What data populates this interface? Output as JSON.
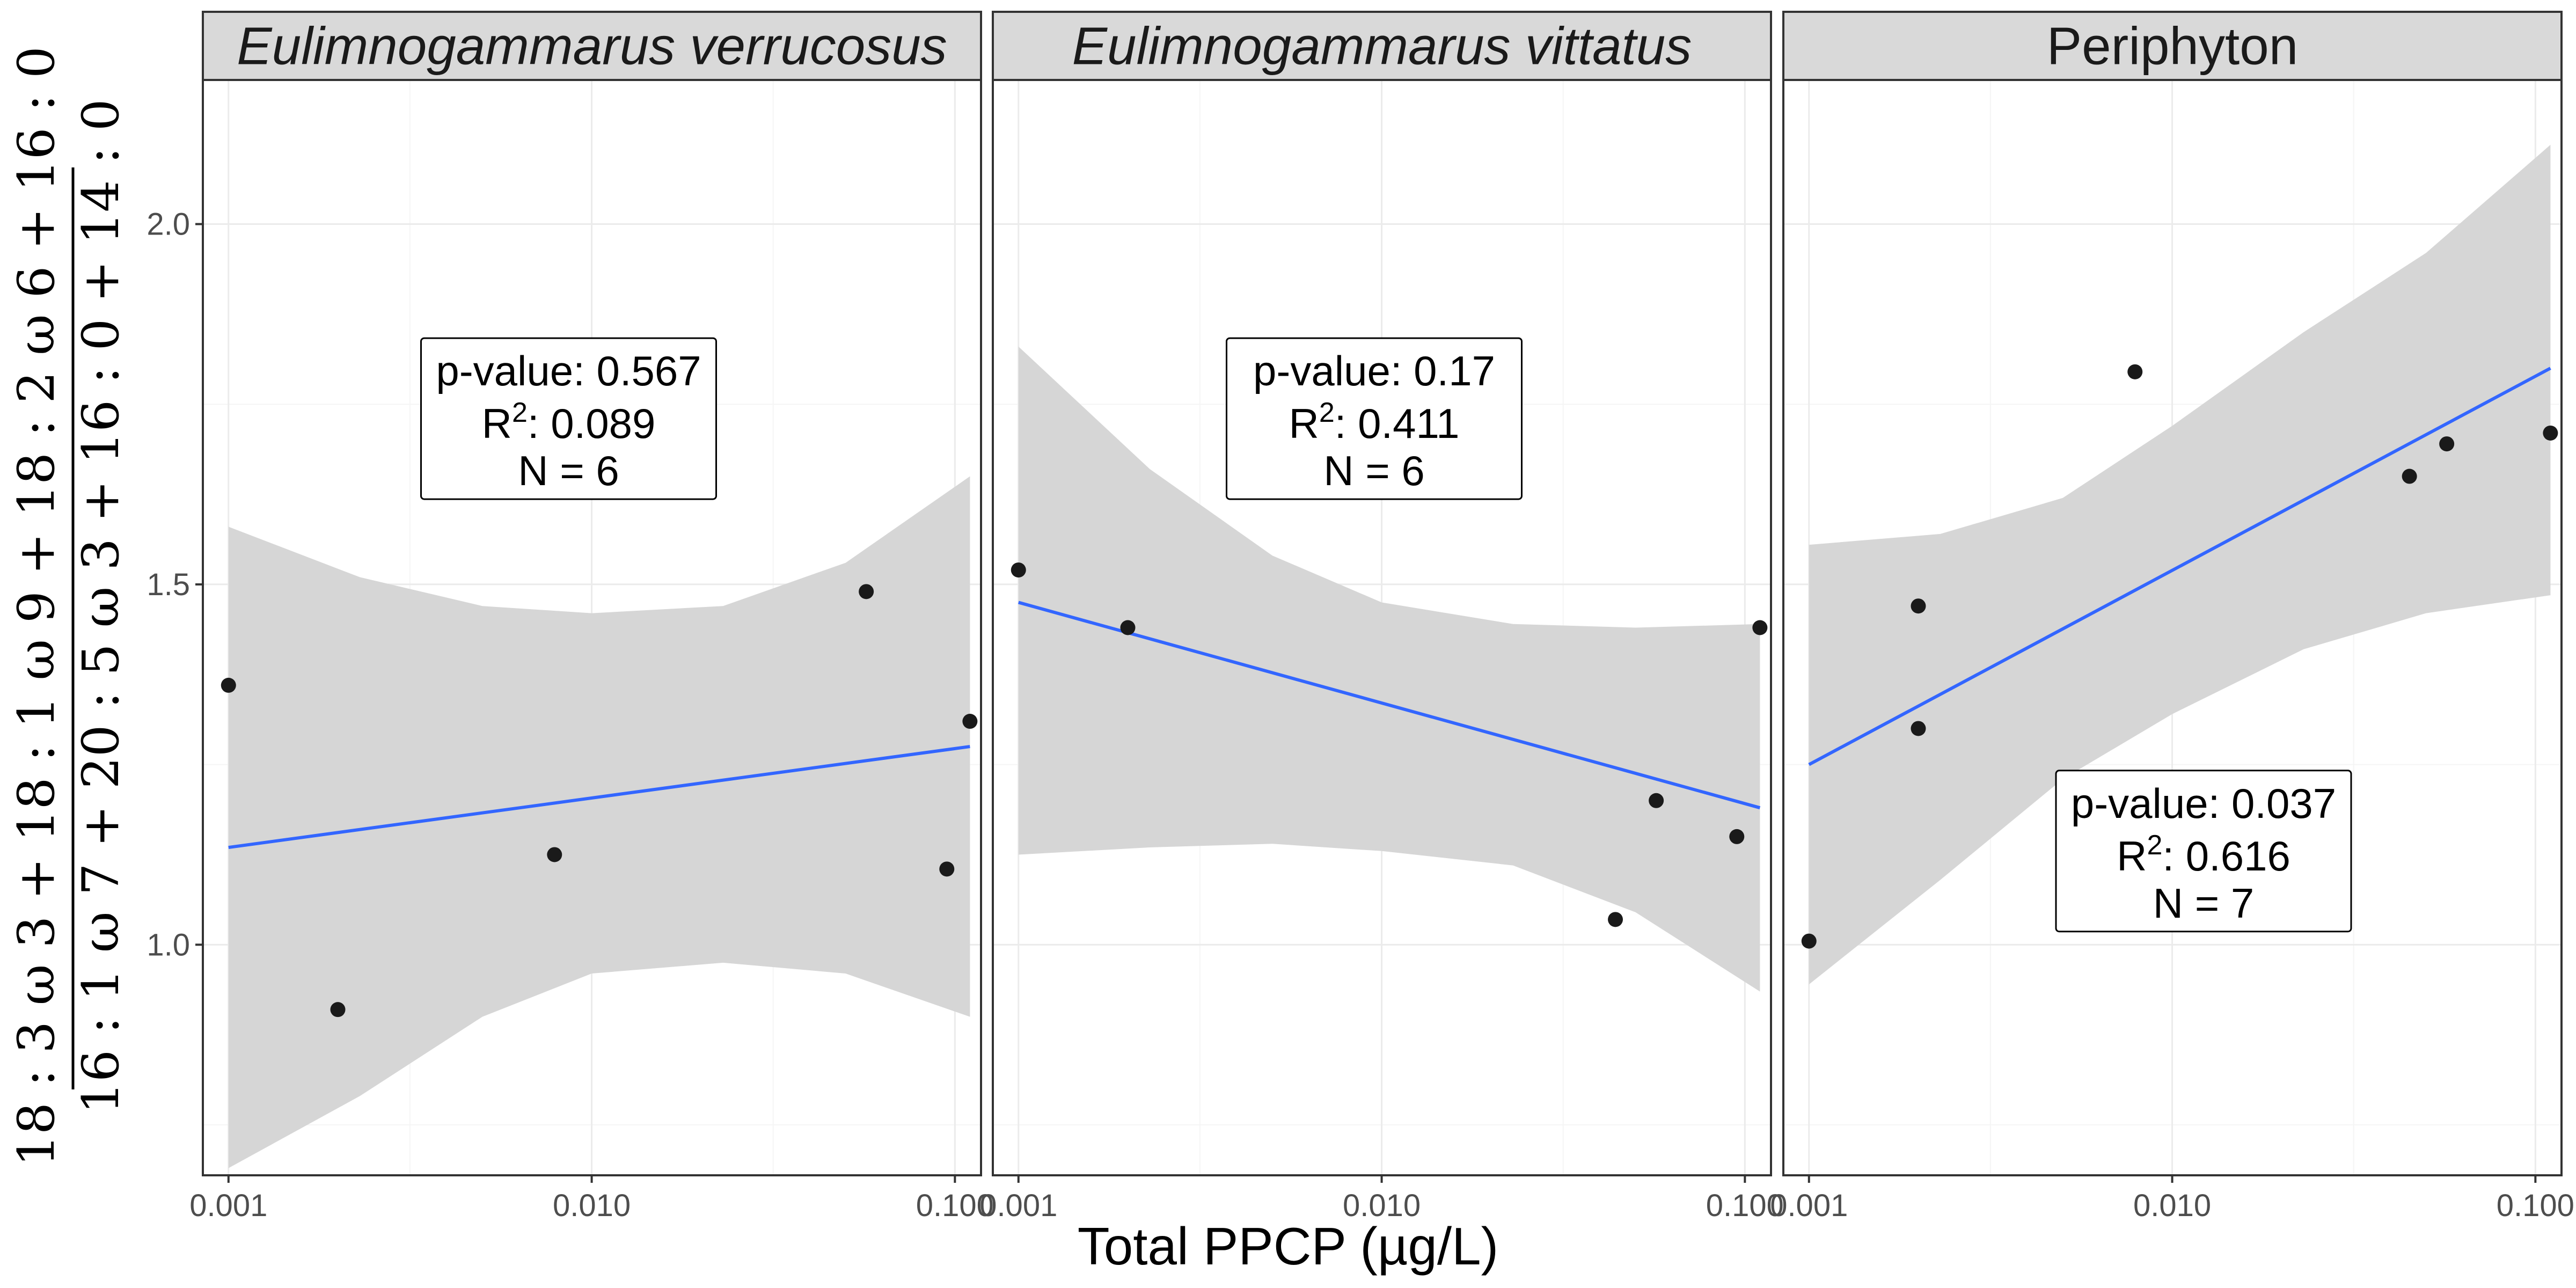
{
  "chart_data": {
    "type": "scatter",
    "x_scale": "log10",
    "xlim": [
      0.00085,
      0.118
    ],
    "ylim": [
      0.68,
      2.2
    ],
    "x_ticks": [
      0.001,
      0.01,
      0.1
    ],
    "x_tick_labels": [
      "0.001",
      "0.010",
      "0.100"
    ],
    "y_ticks": [
      1.0,
      1.5,
      2.0
    ],
    "y_tick_labels": [
      "1.0",
      "1.5",
      "2.0"
    ],
    "xlabel": "Total PPCP (µg/L)",
    "ylabel": {
      "numerator": "18 : 3 ω 3 + 18 : 1 ω 9 + 18 : 2 ω 6 + 16 : 0",
      "denominator": "16 : 1 ω 7 + 20 : 5 ω 3 + 16 : 0 + 14 : 0"
    },
    "grid": true,
    "legend": "none",
    "colors": {
      "points": "#1a1a1a",
      "fit_line": "#3366ff",
      "ribbon": "#d6d6d6",
      "strip_fill": "#d9d9d9",
      "panel_border": "#333333",
      "grid_major": "#ebebeb",
      "grid_minor": "#f5f5f5"
    },
    "panels": [
      {
        "title": "Eulimnogammarus verrucosus",
        "italic": true,
        "points": [
          {
            "x": 0.001,
            "y": 1.36
          },
          {
            "x": 0.002,
            "y": 0.91
          },
          {
            "x": 0.0079,
            "y": 1.125
          },
          {
            "x": 0.057,
            "y": 1.49
          },
          {
            "x": 0.095,
            "y": 1.105
          },
          {
            "x": 0.11,
            "y": 1.31
          }
        ],
        "fit": {
          "x": [
            0.001,
            0.11
          ],
          "y": [
            1.135,
            1.275
          ]
        },
        "ribbon": {
          "x": [
            0.001,
            0.0023,
            0.005,
            0.01,
            0.023,
            0.05,
            0.11
          ],
          "upper": [
            1.58,
            1.51,
            1.47,
            1.46,
            1.47,
            1.53,
            1.65
          ],
          "lower": [
            0.69,
            0.79,
            0.9,
            0.96,
            0.975,
            0.96,
            0.9
          ]
        },
        "annotation": {
          "pvalue": "p-value: 0.567",
          "r2_label": "R",
          "r2_sup": "2",
          "r2_value": ": 0.089",
          "n": "N = 6"
        }
      },
      {
        "title": "Eulimnogammarus vittatus",
        "italic": true,
        "points": [
          {
            "x": 0.001,
            "y": 1.52
          },
          {
            "x": 0.002,
            "y": 1.44
          },
          {
            "x": 0.044,
            "y": 1.035
          },
          {
            "x": 0.057,
            "y": 1.2
          },
          {
            "x": 0.095,
            "y": 1.15
          },
          {
            "x": 0.11,
            "y": 1.44
          }
        ],
        "fit": {
          "x": [
            0.001,
            0.11
          ],
          "y": [
            1.475,
            1.19
          ]
        },
        "ribbon": {
          "x": [
            0.001,
            0.0023,
            0.005,
            0.01,
            0.023,
            0.05,
            0.11
          ],
          "upper": [
            1.83,
            1.66,
            1.54,
            1.475,
            1.445,
            1.44,
            1.445
          ],
          "lower": [
            1.125,
            1.135,
            1.14,
            1.13,
            1.11,
            1.045,
            0.935
          ]
        },
        "annotation": {
          "pvalue": "p-value: 0.17",
          "r2_label": "R",
          "r2_sup": "2",
          "r2_value": ": 0.411",
          "n": "N = 6"
        }
      },
      {
        "title": "Periphyton",
        "italic": false,
        "points": [
          {
            "x": 0.001,
            "y": 1.005
          },
          {
            "x": 0.002,
            "y": 1.47
          },
          {
            "x": 0.002,
            "y": 1.3
          },
          {
            "x": 0.0079,
            "y": 1.795
          },
          {
            "x": 0.045,
            "y": 1.65
          },
          {
            "x": 0.057,
            "y": 1.695
          },
          {
            "x": 0.11,
            "y": 1.71
          }
        ],
        "fit": {
          "x": [
            0.001,
            0.11
          ],
          "y": [
            1.25,
            1.8
          ]
        },
        "ribbon": {
          "x": [
            0.001,
            0.0023,
            0.005,
            0.01,
            0.023,
            0.05,
            0.11
          ],
          "upper": [
            1.555,
            1.57,
            1.62,
            1.72,
            1.85,
            1.96,
            2.11
          ],
          "lower": [
            0.945,
            1.09,
            1.23,
            1.32,
            1.41,
            1.46,
            1.485
          ]
        },
        "annotation": {
          "pvalue": "p-value: 0.037",
          "r2_label": "R",
          "r2_sup": "2",
          "r2_value": ": 0.616",
          "n": "N = 7"
        }
      }
    ]
  }
}
